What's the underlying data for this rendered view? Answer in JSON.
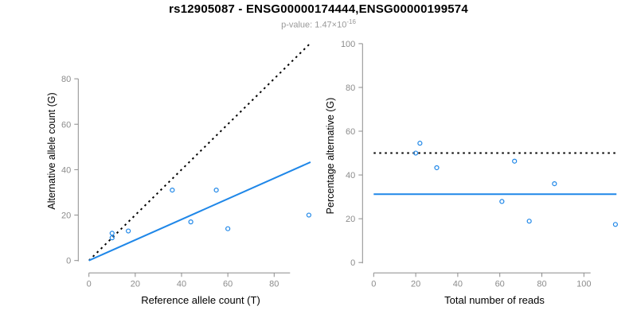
{
  "header": {
    "title": "rs12905087 - ENSG00000174444,ENSG00000199574",
    "subtitle_main": "p-value: 1.47×10",
    "subtitle_exponent": "-16"
  },
  "colors": {
    "accent_blue": "#1f87e8",
    "dotted_line_black": "#000000",
    "axis_gray": "#8c8c8c",
    "tick_label_gray": "#8c8c8c",
    "axis_title_black": "#000000",
    "subtitle_gray": "#999999",
    "background": "#ffffff"
  },
  "chart_data": [
    {
      "name": "allele-count-scatter",
      "type": "scatter",
      "xlabel": "Reference allele count (T)",
      "ylabel": "Alternative allele count (G)",
      "x_ticks": [
        0,
        20,
        40,
        60,
        80
      ],
      "y_ticks": [
        0,
        20,
        40,
        60,
        80
      ],
      "xlim": [
        0,
        95
      ],
      "ylim": [
        0,
        95
      ],
      "grid": false,
      "legend": "none",
      "points": [
        [
          10,
          12
        ],
        [
          10,
          10
        ],
        [
          17,
          13
        ],
        [
          36,
          31
        ],
        [
          44,
          17
        ],
        [
          55,
          31
        ],
        [
          60,
          14
        ],
        [
          95,
          20
        ]
      ],
      "lines": [
        {
          "name": "identity-line",
          "style": "dotted",
          "x1": 0,
          "y1": 0,
          "x2": 95.3,
          "y2": 95.3
        },
        {
          "name": "regression-line",
          "style": "solid",
          "x1": 0,
          "y1": 0,
          "x2": 95.7,
          "y2": 43.3
        }
      ]
    },
    {
      "name": "percentage-alternative-scatter",
      "type": "scatter",
      "xlabel": "Total number of reads",
      "ylabel": "Percentage alternative (G)",
      "x_ticks": [
        0,
        20,
        40,
        60,
        80,
        100
      ],
      "y_ticks": [
        0,
        20,
        40,
        60,
        80,
        100
      ],
      "xlim": [
        0,
        116
      ],
      "ylim": [
        0,
        100
      ],
      "grid": false,
      "legend": "none",
      "points": [
        [
          22,
          54.5
        ],
        [
          20,
          50
        ],
        [
          30,
          43.3
        ],
        [
          67,
          46.3
        ],
        [
          61,
          27.9
        ],
        [
          86,
          36
        ],
        [
          74,
          18.9
        ],
        [
          115,
          17.4
        ]
      ],
      "lines": [
        {
          "name": "fifty-percent-line",
          "style": "dotted",
          "x1": 0,
          "y1": 50,
          "x2": 115.5,
          "y2": 50
        },
        {
          "name": "mean-percentage-line",
          "style": "solid",
          "x1": 0,
          "y1": 31.2,
          "x2": 115.5,
          "y2": 31.2
        }
      ]
    }
  ]
}
